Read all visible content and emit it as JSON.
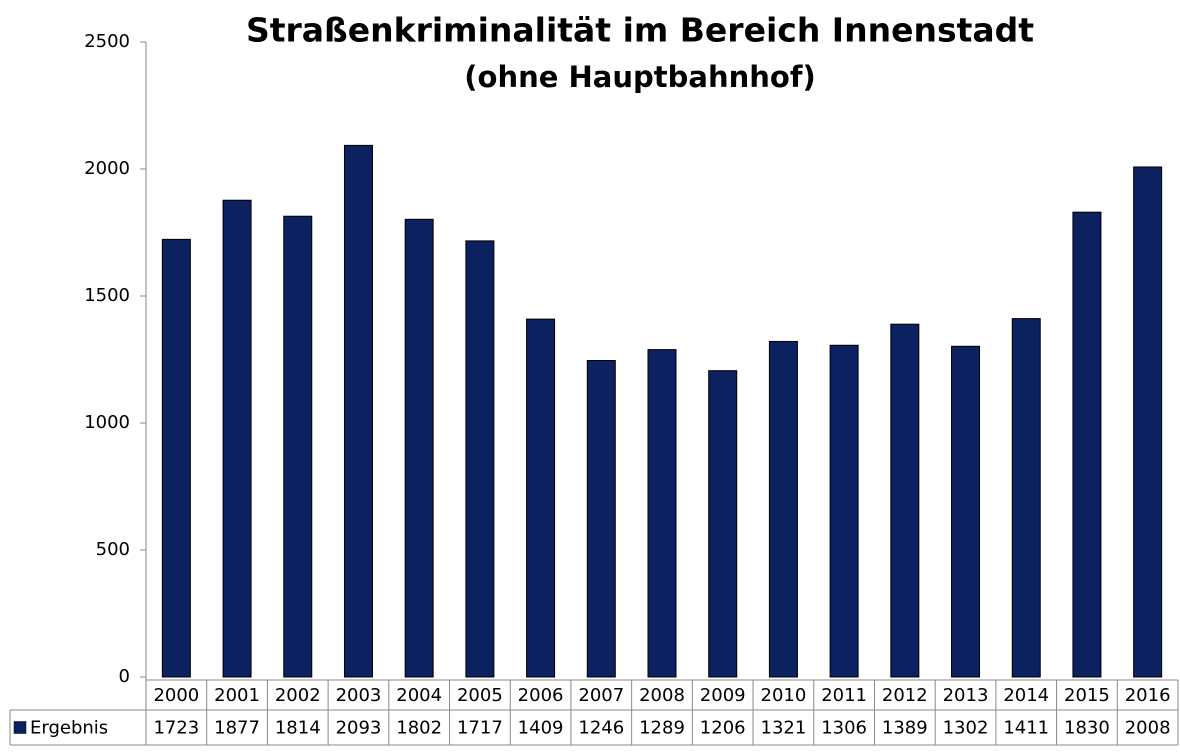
{
  "chart_data": {
    "type": "bar",
    "title": "Straßenkriminalität im Bereich Innenstadt",
    "subtitle": "(ohne Hauptbahnhof)",
    "categories": [
      "2000",
      "2001",
      "2002",
      "2003",
      "2004",
      "2005",
      "2006",
      "2007",
      "2008",
      "2009",
      "2010",
      "2011",
      "2012",
      "2013",
      "2014",
      "2015",
      "2016"
    ],
    "series": [
      {
        "name": "Ergebnis",
        "color": "#0b2160",
        "values": [
          1723,
          1877,
          1814,
          2093,
          1802,
          1717,
          1409,
          1246,
          1289,
          1206,
          1321,
          1306,
          1389,
          1302,
          1411,
          1830,
          2008
        ]
      }
    ],
    "ylim": [
      0,
      2500
    ],
    "yticks": [
      0,
      500,
      1000,
      1500,
      2000,
      2500
    ],
    "grid": false
  }
}
